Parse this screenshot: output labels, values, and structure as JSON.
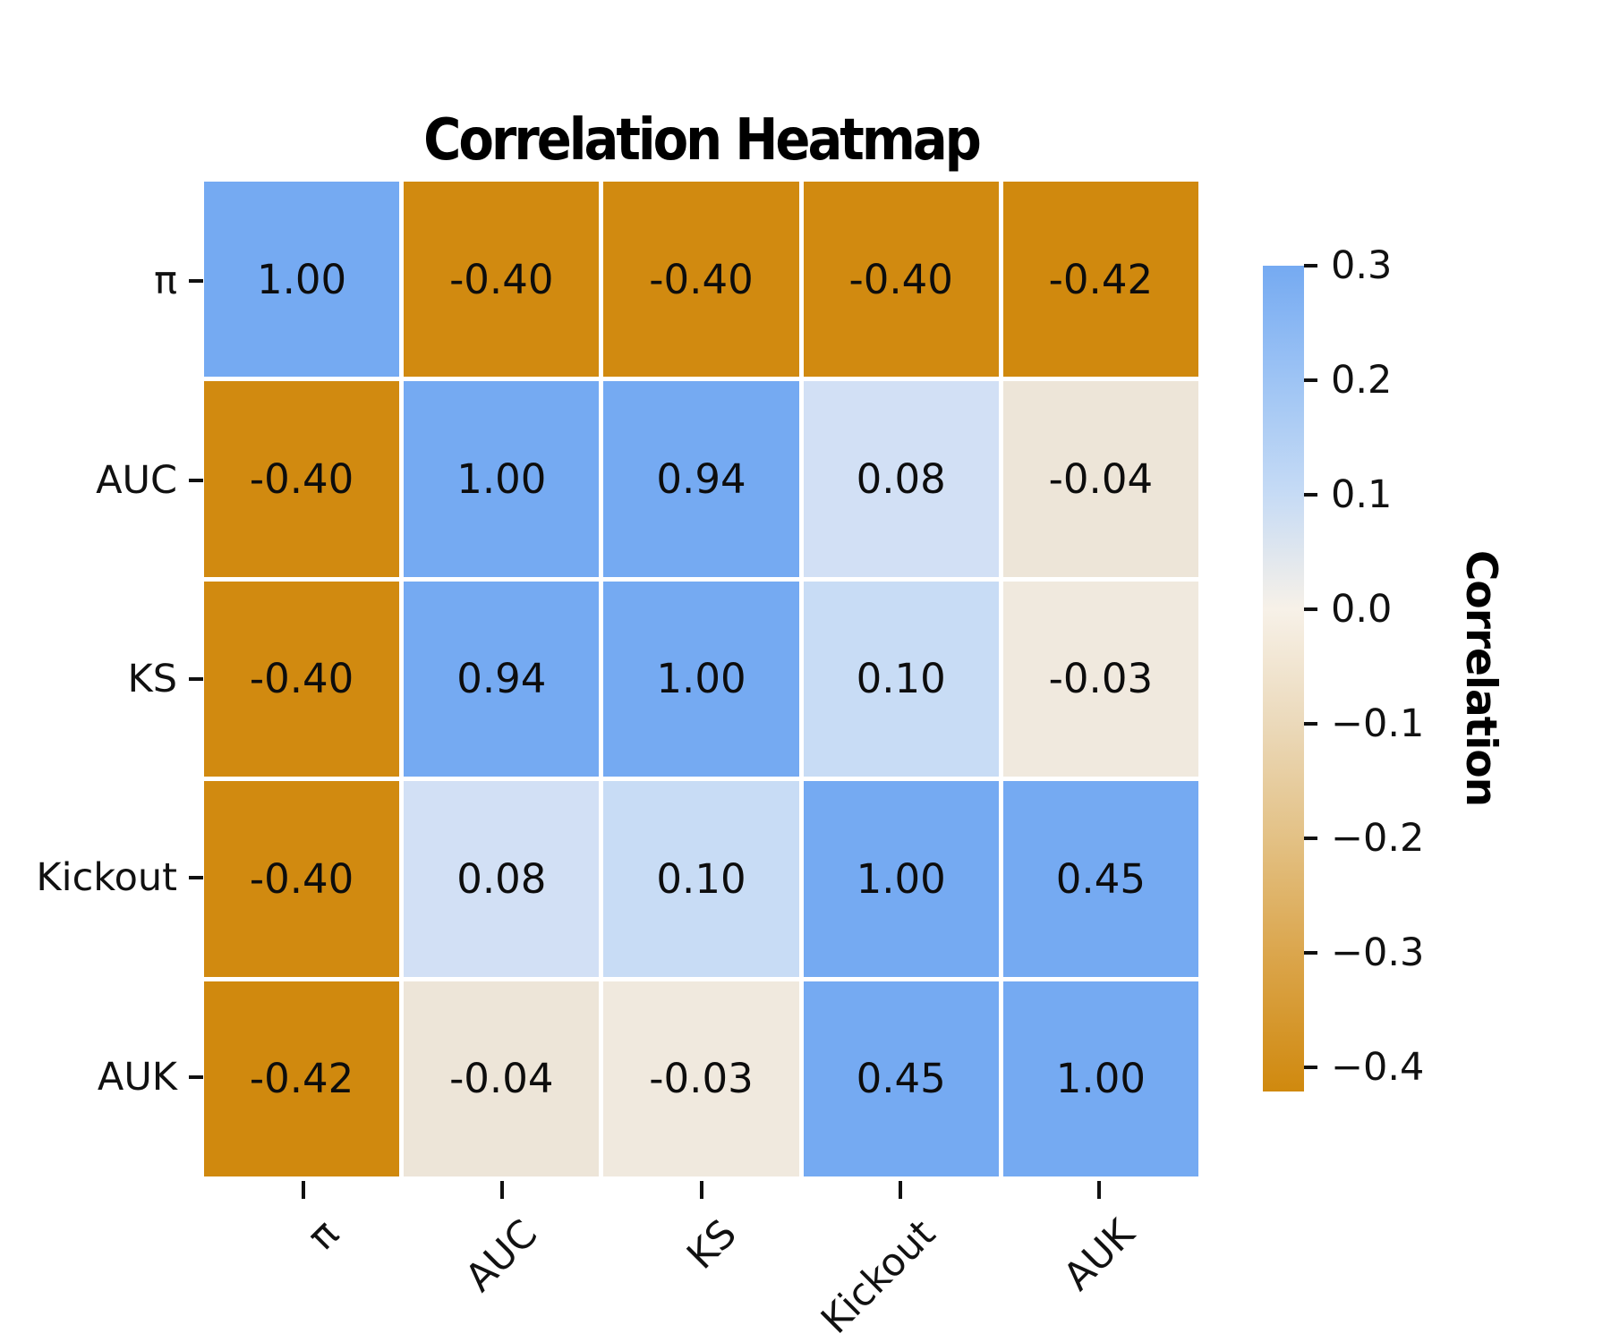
{
  "figure": {
    "background": "#ffffff"
  },
  "chart_data": {
    "type": "heatmap",
    "title": "Correlation Heatmap",
    "categories": [
      "π",
      "AUC",
      "KS",
      "Kickout",
      "AUK"
    ],
    "matrix": [
      [
        1.0,
        -0.4,
        -0.4,
        -0.4,
        -0.42
      ],
      [
        -0.4,
        1.0,
        0.94,
        0.08,
        -0.04
      ],
      [
        -0.4,
        0.94,
        1.0,
        0.1,
        -0.03
      ],
      [
        -0.4,
        0.08,
        0.1,
        1.0,
        0.45
      ],
      [
        -0.42,
        -0.04,
        -0.03,
        0.45,
        1.0
      ]
    ],
    "value_decimals": 2,
    "cell_colors": [
      [
        "#75aaf2",
        "#d18a10",
        "#d18a10",
        "#d18a10",
        "#d0890e"
      ],
      [
        "#d18a10",
        "#75aaf2",
        "#75aaf2",
        "#d2e0f5",
        "#ede5d8"
      ],
      [
        "#d18a10",
        "#75aaf2",
        "#75aaf2",
        "#c8dcf5",
        "#f0e9de"
      ],
      [
        "#d18a10",
        "#d2e0f5",
        "#c8dcf5",
        "#75aaf2",
        "#75aaf2"
      ],
      [
        "#d0890e",
        "#ede5d8",
        "#f0e9de",
        "#75aaf2",
        "#75aaf2"
      ]
    ],
    "grid_gap_color": "#ffffff",
    "annotation_color": "#0d0d0d",
    "colorbar": {
      "label": "Correlation",
      "vmax": 0.3,
      "vmin": -0.421,
      "tick_values": [
        0.3,
        0.2,
        0.1,
        0.0,
        -0.1,
        -0.2,
        -0.3,
        -0.4
      ],
      "tick_labels": [
        "0.3",
        "0.2",
        "0.1",
        "0.0",
        "−0.1",
        "−0.2",
        "−0.3",
        "−0.4"
      ],
      "gradient_stops": [
        {
          "pct": 0,
          "color": "#75aaf2"
        },
        {
          "pct": 13.9,
          "color": "#9ec4f4"
        },
        {
          "pct": 27.7,
          "color": "#c6dbf5"
        },
        {
          "pct": 41.6,
          "color": "#f7f1e8"
        },
        {
          "pct": 55.5,
          "color": "#ebd9ba"
        },
        {
          "pct": 69.3,
          "color": "#e3c185"
        },
        {
          "pct": 83.2,
          "color": "#dba64d"
        },
        {
          "pct": 100,
          "color": "#d0890e"
        }
      ]
    },
    "colors": {
      "strong_positive_blue": "#75aaf2",
      "strong_negative_orange": "#d18a10",
      "near_zero_warm": "#f0e9de"
    }
  }
}
